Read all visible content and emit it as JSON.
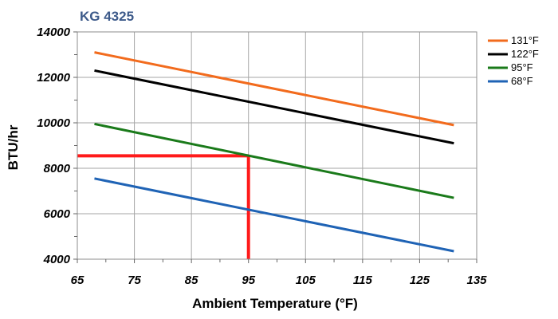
{
  "chart_data": {
    "type": "line",
    "title": "KG 4325",
    "title_color": "#3d5a8a",
    "xlabel": "Ambient Temperature (°F)",
    "ylabel": "BTU/hr",
    "xlim": [
      65,
      135
    ],
    "ylim": [
      4000,
      14000
    ],
    "x_ticks": [
      65,
      75,
      85,
      95,
      105,
      115,
      125,
      135
    ],
    "y_ticks": [
      4000,
      6000,
      8000,
      10000,
      12000,
      14000
    ],
    "grid": true,
    "legend_position": "right",
    "series": [
      {
        "name": "131°F",
        "color": "#f26b1d",
        "x": [
          68,
          131
        ],
        "y": [
          13100,
          9900
        ]
      },
      {
        "name": "122°F",
        "color": "#000000",
        "x": [
          68,
          131
        ],
        "y": [
          12300,
          9100
        ]
      },
      {
        "name": "95°F",
        "color": "#1a7a1a",
        "x": [
          68,
          131
        ],
        "y": [
          9950,
          6700
        ]
      },
      {
        "name": "68°F",
        "color": "#1f63b5",
        "x": [
          68,
          131
        ],
        "y": [
          7550,
          4350
        ]
      }
    ],
    "annotation": {
      "color": "#ff1a1a",
      "x": 95,
      "y": 8550
    }
  }
}
